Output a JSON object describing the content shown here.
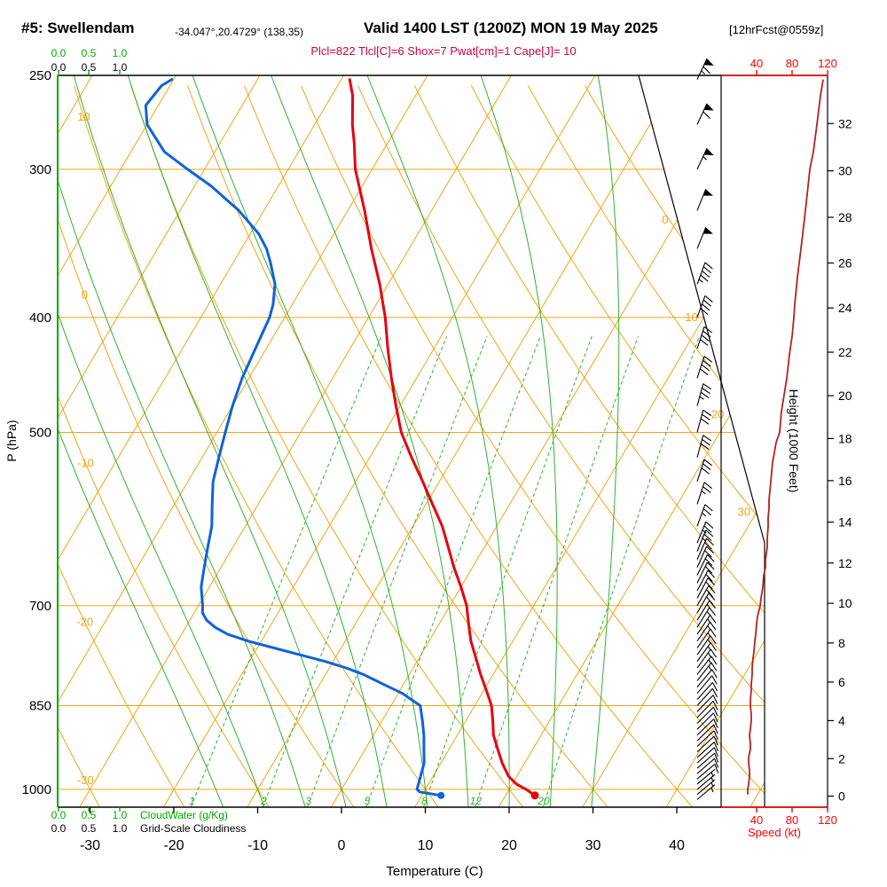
{
  "header": {
    "station": "#5: Swellendam",
    "coords": "-34.047°,20.4729° (138,35)",
    "valid": "Valid 1400 LST (1200Z) MON 19 May 2025",
    "fcst": "[12hrFcst@0559z]",
    "params": "Plcl=822 Tlcl[C]=6 Shox=7 Pwat[cm]=1 Cape[J]= 10"
  },
  "axis_labels": {
    "pressure": "P (hPa)",
    "temperature": "Temperature (C)",
    "height": "Height (1000 Feet)",
    "speed": "Speed (kt)",
    "cloudwater": "CloudWater (g/Kg)",
    "cloudiness": "Grid-Scale Cloudiness"
  },
  "ticks": {
    "pressure": [
      250,
      300,
      400,
      500,
      700,
      850,
      1000
    ],
    "temperature": [
      -30,
      -20,
      -10,
      0,
      10,
      20,
      30,
      40
    ],
    "height_kft": [
      0,
      2,
      4,
      6,
      8,
      10,
      12,
      14,
      16,
      18,
      20,
      22,
      24,
      26,
      28,
      30,
      32
    ],
    "speed_kt": [
      40,
      80,
      120
    ],
    "cloud_scale": [
      "0.0",
      "0.5",
      "1.0"
    ]
  },
  "grid": {
    "isotherms_c": [
      -100,
      -90,
      -80,
      -70,
      -60,
      -50,
      -40,
      -30,
      -20,
      -10,
      0,
      10,
      20,
      30,
      40,
      50
    ],
    "isotherm_labels": [
      0,
      10,
      20,
      30
    ],
    "dry_adiabats_c": [
      -30,
      -20,
      -10,
      0,
      10,
      20,
      30,
      40,
      50,
      60,
      70,
      80,
      90,
      100,
      110,
      120,
      130,
      140
    ],
    "dry_adiabat_labels": [
      10,
      0,
      -10,
      -20,
      -30
    ],
    "moist_adiabats_c": [
      -15,
      -10,
      -5,
      0,
      5,
      10,
      15,
      20,
      25,
      30
    ],
    "mixing_ratio_gkg": [
      1,
      2,
      3,
      5,
      8,
      12,
      20
    ]
  },
  "colors": {
    "grid_orange": "#EFA418",
    "green": "#2FB32F",
    "cloud_green": "#00A800",
    "temp_red": "#E60012",
    "dew_blue": "#0F62DB",
    "speed_maroon": "#B22222",
    "scale_red": "#FF0000",
    "param_magenta": "#CC0044",
    "barb_black": "#000000"
  },
  "chart_data": {
    "type": "line",
    "subtype": "skew-t log-p atmospheric sounding",
    "x_axis": {
      "label": "Temperature (C)",
      "range": [
        -35,
        45
      ]
    },
    "y_axis": {
      "label": "P (hPa)",
      "range": [
        1035,
        250
      ],
      "scale": "log"
    },
    "right_axis": {
      "label": "Height (1000 Feet)",
      "range": [
        0,
        33
      ]
    },
    "speed_axis": {
      "label": "Speed (kt)",
      "range": [
        0,
        120
      ]
    },
    "series": [
      {
        "name": "temperature",
        "units": [
          "hPa",
          "C"
        ],
        "points": [
          [
            1012,
            23.5
          ],
          [
            1000,
            22
          ],
          [
            990,
            20.5
          ],
          [
            975,
            19
          ],
          [
            950,
            17.3
          ],
          [
            925,
            15.8
          ],
          [
            900,
            14.3
          ],
          [
            875,
            13.2
          ],
          [
            850,
            12
          ],
          [
            825,
            10.3
          ],
          [
            800,
            8.5
          ],
          [
            775,
            6.8
          ],
          [
            750,
            5
          ],
          [
            725,
            3.5
          ],
          [
            700,
            2
          ],
          [
            675,
            0
          ],
          [
            650,
            -2.2
          ],
          [
            625,
            -4.3
          ],
          [
            600,
            -6.5
          ],
          [
            575,
            -9.2
          ],
          [
            550,
            -12
          ],
          [
            525,
            -15
          ],
          [
            500,
            -18
          ],
          [
            475,
            -20.5
          ],
          [
            450,
            -23
          ],
          [
            425,
            -25.5
          ],
          [
            400,
            -28
          ],
          [
            375,
            -31
          ],
          [
            350,
            -34.5
          ],
          [
            325,
            -38
          ],
          [
            300,
            -42
          ],
          [
            285,
            -44
          ],
          [
            275,
            -45.5
          ],
          [
            260,
            -47.5
          ],
          [
            252,
            -49
          ]
        ]
      },
      {
        "name": "dewpoint",
        "units": [
          "hPa",
          "C"
        ],
        "points": [
          [
            1012,
            12.3
          ],
          [
            1005,
            9.5
          ],
          [
            1000,
            9
          ],
          [
            990,
            8.8
          ],
          [
            975,
            8.5
          ],
          [
            950,
            8
          ],
          [
            925,
            7
          ],
          [
            900,
            6
          ],
          [
            875,
            4.8
          ],
          [
            850,
            3.5
          ],
          [
            840,
            2
          ],
          [
            830,
            0.5
          ],
          [
            820,
            -1.5
          ],
          [
            810,
            -3.5
          ],
          [
            800,
            -5.5
          ],
          [
            790,
            -8
          ],
          [
            780,
            -11
          ],
          [
            770,
            -14.5
          ],
          [
            760,
            -18
          ],
          [
            750,
            -21.5
          ],
          [
            740,
            -24.5
          ],
          [
            730,
            -26.5
          ],
          [
            720,
            -28
          ],
          [
            710,
            -29
          ],
          [
            700,
            -29.5
          ],
          [
            675,
            -31
          ],
          [
            650,
            -32
          ],
          [
            625,
            -33
          ],
          [
            600,
            -34
          ],
          [
            575,
            -35.5
          ],
          [
            550,
            -37
          ],
          [
            525,
            -38
          ],
          [
            500,
            -39
          ],
          [
            475,
            -40
          ],
          [
            450,
            -40.8
          ],
          [
            425,
            -41.3
          ],
          [
            400,
            -41.8
          ],
          [
            390,
            -42.3
          ],
          [
            375,
            -43.5
          ],
          [
            360,
            -45.5
          ],
          [
            350,
            -47
          ],
          [
            340,
            -49
          ],
          [
            325,
            -53
          ],
          [
            310,
            -58
          ],
          [
            300,
            -62
          ],
          [
            290,
            -66
          ],
          [
            275,
            -70
          ],
          [
            265,
            -71.5
          ],
          [
            255,
            -71
          ],
          [
            252,
            -70.2
          ]
        ]
      },
      {
        "name": "wind_speed",
        "units": [
          "hPa",
          "kt"
        ],
        "points": [
          [
            1010,
            30
          ],
          [
            1000,
            30
          ],
          [
            990,
            31
          ],
          [
            975,
            32
          ],
          [
            965,
            32
          ],
          [
            950,
            31
          ],
          [
            940,
            31
          ],
          [
            925,
            33
          ],
          [
            915,
            33
          ],
          [
            900,
            32
          ],
          [
            890,
            33
          ],
          [
            875,
            34
          ],
          [
            865,
            34
          ],
          [
            850,
            33
          ],
          [
            840,
            33
          ],
          [
            825,
            34
          ],
          [
            815,
            34
          ],
          [
            800,
            35
          ],
          [
            790,
            35
          ],
          [
            775,
            36
          ],
          [
            765,
            37
          ],
          [
            750,
            38
          ],
          [
            740,
            39
          ],
          [
            725,
            40
          ],
          [
            715,
            41
          ],
          [
            700,
            44
          ],
          [
            690,
            45
          ],
          [
            675,
            47
          ],
          [
            660,
            48
          ],
          [
            650,
            50
          ],
          [
            640,
            50
          ],
          [
            625,
            52
          ],
          [
            615,
            52
          ],
          [
            600,
            53
          ],
          [
            590,
            53
          ],
          [
            580,
            54
          ],
          [
            570,
            54
          ],
          [
            560,
            55
          ],
          [
            550,
            56
          ],
          [
            540,
            57
          ],
          [
            530,
            58
          ],
          [
            520,
            60
          ],
          [
            510,
            62
          ],
          [
            500,
            66
          ],
          [
            480,
            68
          ],
          [
            465,
            71
          ],
          [
            450,
            74
          ],
          [
            430,
            77
          ],
          [
            415,
            80
          ],
          [
            400,
            82
          ],
          [
            390,
            83
          ],
          [
            370,
            86
          ],
          [
            350,
            90
          ],
          [
            330,
            94
          ],
          [
            315,
            97
          ],
          [
            300,
            100
          ],
          [
            290,
            104
          ],
          [
            275,
            108
          ],
          [
            260,
            112
          ],
          [
            252,
            115
          ]
        ]
      }
    ],
    "wind_barbs": {
      "units": [
        "hPa",
        "kt",
        "deg"
      ],
      "points": [
        [
          252,
          65,
          25
        ],
        [
          275,
          60,
          25
        ],
        [
          300,
          55,
          25
        ],
        [
          325,
          50,
          22
        ],
        [
          350,
          48,
          22
        ],
        [
          375,
          45,
          20
        ],
        [
          400,
          42,
          20
        ],
        [
          425,
          40,
          18
        ],
        [
          450,
          38,
          18
        ],
        [
          475,
          35,
          15
        ],
        [
          500,
          32,
          15
        ],
        [
          525,
          30,
          15
        ],
        [
          550,
          28,
          18
        ],
        [
          575,
          26,
          18
        ],
        [
          600,
          25,
          20
        ],
        [
          620,
          24,
          22
        ],
        [
          630,
          23,
          22
        ],
        [
          640,
          22,
          24
        ],
        [
          650,
          22,
          24
        ],
        [
          660,
          21,
          26
        ],
        [
          670,
          20,
          26
        ],
        [
          680,
          20,
          28
        ],
        [
          690,
          19,
          28
        ],
        [
          700,
          18,
          30
        ],
        [
          710,
          18,
          30
        ],
        [
          720,
          17,
          32
        ],
        [
          730,
          17,
          32
        ],
        [
          740,
          16,
          34
        ],
        [
          750,
          16,
          34
        ],
        [
          760,
          15,
          35
        ],
        [
          770,
          15,
          35
        ],
        [
          780,
          14,
          36
        ],
        [
          790,
          14,
          36
        ],
        [
          800,
          13,
          38
        ],
        [
          810,
          13,
          38
        ],
        [
          820,
          12,
          40
        ],
        [
          830,
          12,
          40
        ],
        [
          840,
          12,
          42
        ],
        [
          850,
          11,
          42
        ],
        [
          860,
          11,
          44
        ],
        [
          870,
          10,
          44
        ],
        [
          880,
          10,
          45
        ],
        [
          890,
          10,
          45
        ],
        [
          900,
          10,
          46
        ],
        [
          910,
          9,
          46
        ],
        [
          920,
          9,
          47
        ],
        [
          930,
          9,
          47
        ],
        [
          940,
          8,
          48
        ],
        [
          950,
          8,
          48
        ],
        [
          960,
          8,
          49
        ],
        [
          970,
          8,
          49
        ],
        [
          980,
          8,
          50
        ],
        [
          990,
          7,
          50
        ],
        [
          1000,
          7,
          50
        ],
        [
          1010,
          7,
          50
        ],
        [
          1020,
          6,
          50
        ]
      ]
    }
  }
}
